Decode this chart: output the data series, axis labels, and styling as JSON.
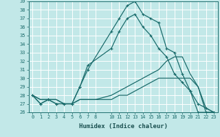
{
  "xlabel": "Humidex (Indice chaleur)",
  "background_color": "#c2e8e8",
  "grid_color": "#ffffff",
  "line_color": "#1a6b6b",
  "line1_x": [
    0,
    1,
    2,
    3,
    4,
    5,
    6,
    7,
    10,
    11,
    12,
    13,
    14,
    15,
    16,
    17,
    18,
    19,
    20,
    21,
    22,
    23
  ],
  "line1_y": [
    28,
    27,
    27.5,
    27,
    27,
    27,
    29,
    31,
    35.5,
    37,
    38.5,
    39,
    37.5,
    37,
    36.5,
    33.5,
    33,
    30.5,
    28.5,
    26,
    26,
    26
  ],
  "line2_x": [
    0,
    1,
    2,
    3,
    4,
    5,
    6,
    7,
    10,
    11,
    12,
    13,
    14,
    15,
    16,
    17,
    18,
    19,
    20,
    21,
    22,
    23
  ],
  "line2_y": [
    28,
    27,
    27.5,
    27,
    27,
    27,
    29,
    31.5,
    33.5,
    35.5,
    37,
    37.5,
    36,
    35,
    33.5,
    32.5,
    30.5,
    29.5,
    28.5,
    27,
    26.5,
    26
  ],
  "line3_x": [
    0,
    1,
    2,
    3,
    4,
    5,
    6,
    7,
    8,
    10,
    11,
    12,
    13,
    14,
    15,
    16,
    17,
    18,
    19,
    20,
    21,
    22,
    23
  ],
  "line3_y": [
    28,
    27.5,
    27.5,
    27.5,
    27,
    27,
    27.5,
    27.5,
    27.5,
    28,
    28.5,
    29,
    29.5,
    30,
    30.5,
    31,
    32,
    32.5,
    32.5,
    30.5,
    29,
    26,
    26
  ],
  "line4_x": [
    0,
    1,
    2,
    3,
    4,
    5,
    6,
    7,
    8,
    10,
    11,
    12,
    13,
    14,
    15,
    16,
    17,
    18,
    19,
    20,
    21,
    22,
    23
  ],
  "line4_y": [
    28,
    27.5,
    27.5,
    27.5,
    27,
    27,
    27.5,
    27.5,
    27.5,
    27.5,
    28,
    28,
    28.5,
    29,
    29.5,
    30,
    30,
    30,
    30,
    30,
    29,
    26.5,
    26
  ],
  "xlim": [
    -0.5,
    23.5
  ],
  "ylim": [
    26,
    39
  ],
  "xtick_labels": [
    "0",
    "1",
    "2",
    "3",
    "4",
    "5",
    "6",
    "7",
    "8",
    "10",
    "11",
    "12",
    "13",
    "14",
    "15",
    "16",
    "17",
    "18",
    "19",
    "20",
    "21",
    "22",
    "23"
  ],
  "xtick_positions": [
    0,
    1,
    2,
    3,
    4,
    5,
    6,
    7,
    8,
    10,
    11,
    12,
    13,
    14,
    15,
    16,
    17,
    18,
    19,
    20,
    21,
    22,
    23
  ],
  "ytick_positions": [
    26,
    27,
    28,
    29,
    30,
    31,
    32,
    33,
    34,
    35,
    36,
    37,
    38,
    39
  ],
  "ytick_labels": [
    "26",
    "27",
    "28",
    "29",
    "30",
    "31",
    "32",
    "33",
    "34",
    "35",
    "36",
    "37",
    "38",
    "39"
  ]
}
